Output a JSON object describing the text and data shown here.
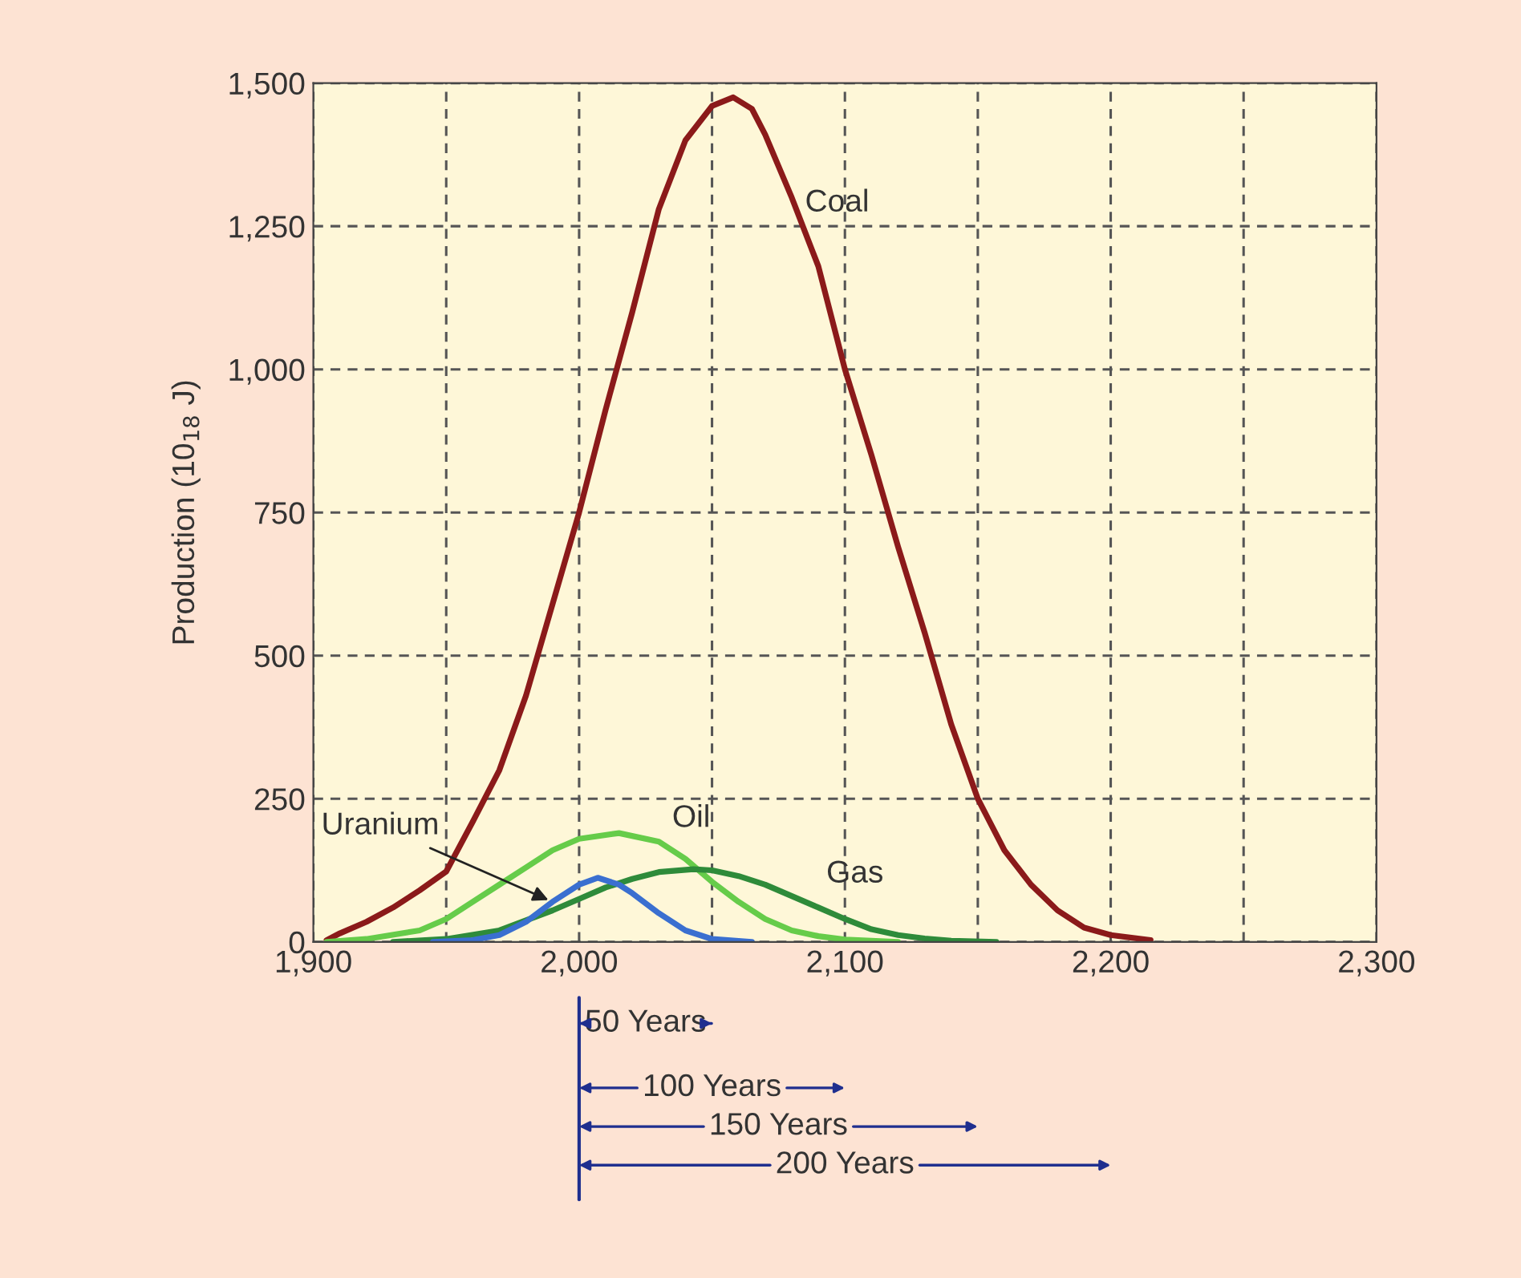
{
  "chart_data": {
    "type": "line",
    "ylabel": "Production (10$_{18}$ J)",
    "xlim": [
      1900,
      2300
    ],
    "ylim": [
      0,
      1500
    ],
    "xticks": [
      {
        "value": 1900,
        "label": "1,900"
      },
      {
        "value": 1950,
        "label": null
      },
      {
        "value": 2000,
        "label": "2,000"
      },
      {
        "value": 2050,
        "label": null
      },
      {
        "value": 2100,
        "label": "2,100"
      },
      {
        "value": 2150,
        "label": null
      },
      {
        "value": 2200,
        "label": "2,200"
      },
      {
        "value": 2250,
        "label": null
      },
      {
        "value": 2300,
        "label": "2,300"
      }
    ],
    "yticks": [
      0,
      250,
      500,
      750,
      {
        "value": 1000,
        "label": "1,000"
      },
      {
        "value": 1250,
        "label": "1,250"
      },
      {
        "value": 1500,
        "label": "1,500"
      }
    ],
    "grid": true,
    "marker": "none",
    "line_style": "solid",
    "series": [
      {
        "name": "Coal",
        "color": "#8b1a1a",
        "x": [
          1905,
          1910,
          1920,
          1930,
          1940,
          1950,
          1960,
          1970,
          1980,
          1990,
          2000,
          2010,
          2020,
          2030,
          2040,
          2050,
          2058,
          2065,
          2070,
          2080,
          2090,
          2100,
          2110,
          2120,
          2130,
          2140,
          2150,
          2160,
          2170,
          2180,
          2190,
          2200,
          2215
        ],
        "values": [
          3,
          15,
          35,
          60,
          90,
          123,
          210,
          300,
          430,
          590,
          750,
          930,
          1100,
          1280,
          1400,
          1460,
          1475,
          1455,
          1410,
          1300,
          1180,
          1000,
          850,
          690,
          540,
          380,
          250,
          160,
          100,
          55,
          25,
          12,
          3
        ]
      },
      {
        "name": "Oil",
        "color": "#66cc4a",
        "x": [
          1905,
          1920,
          1940,
          1950,
          1960,
          1970,
          1980,
          1990,
          2000,
          2015,
          2030,
          2040,
          2050,
          2060,
          2070,
          2080,
          2090,
          2100,
          2120
        ],
        "values": [
          0,
          5,
          20,
          40,
          70,
          100,
          130,
          160,
          180,
          190,
          175,
          145,
          105,
          70,
          40,
          20,
          10,
          4,
          0
        ]
      },
      {
        "name": "Gas",
        "color": "#2e8b3a",
        "x": [
          1930,
          1950,
          1970,
          1990,
          2000,
          2010,
          2020,
          2030,
          2043,
          2050,
          2060,
          2070,
          2080,
          2090,
          2100,
          2110,
          2120,
          2130,
          2140,
          2157
        ],
        "values": [
          0,
          5,
          20,
          55,
          75,
          95,
          110,
          122,
          127,
          125,
          115,
          100,
          80,
          60,
          40,
          22,
          12,
          6,
          2,
          0
        ]
      },
      {
        "name": "Uranium",
        "color": "#3a6fd0",
        "x": [
          1945,
          1960,
          1970,
          1980,
          1990,
          2000,
          2007,
          2015,
          2020,
          2030,
          2040,
          2050,
          2065
        ],
        "values": [
          0,
          3,
          12,
          35,
          70,
          100,
          112,
          100,
          85,
          50,
          20,
          5,
          0
        ]
      }
    ],
    "annotations": [
      "50 Years",
      "100 Years",
      "150 Years",
      "200 Years"
    ]
  }
}
